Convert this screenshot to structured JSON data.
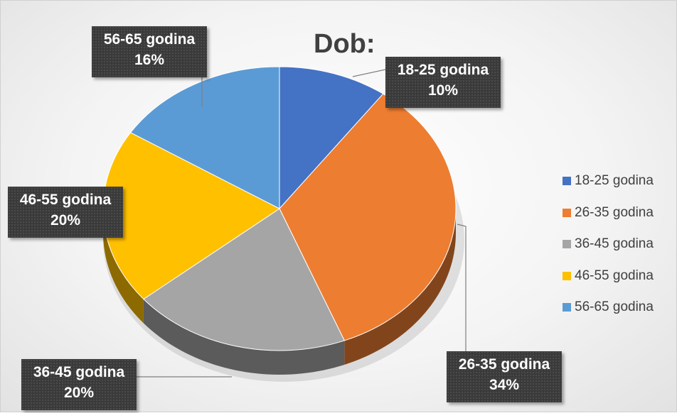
{
  "chart_data": {
    "type": "pie",
    "title": "Dob:",
    "categories": [
      "18-25 godina",
      "26-35 godina",
      "36-45 godina",
      "46-55 godina",
      "56-65 godina"
    ],
    "values": [
      10,
      34,
      20,
      20,
      16
    ],
    "value_labels": [
      "10%",
      "34%",
      "20%",
      "20%",
      "16%"
    ],
    "colors": [
      "#4472C4",
      "#ED7D31",
      "#A5A5A5",
      "#FFC000",
      "#5B9BD5"
    ],
    "style": "3d",
    "legend": {
      "position": "right",
      "entries": [
        "18-25 godina",
        "26-35 godina",
        "36-45 godina",
        "46-55 godina",
        "56-65 godina"
      ]
    }
  }
}
